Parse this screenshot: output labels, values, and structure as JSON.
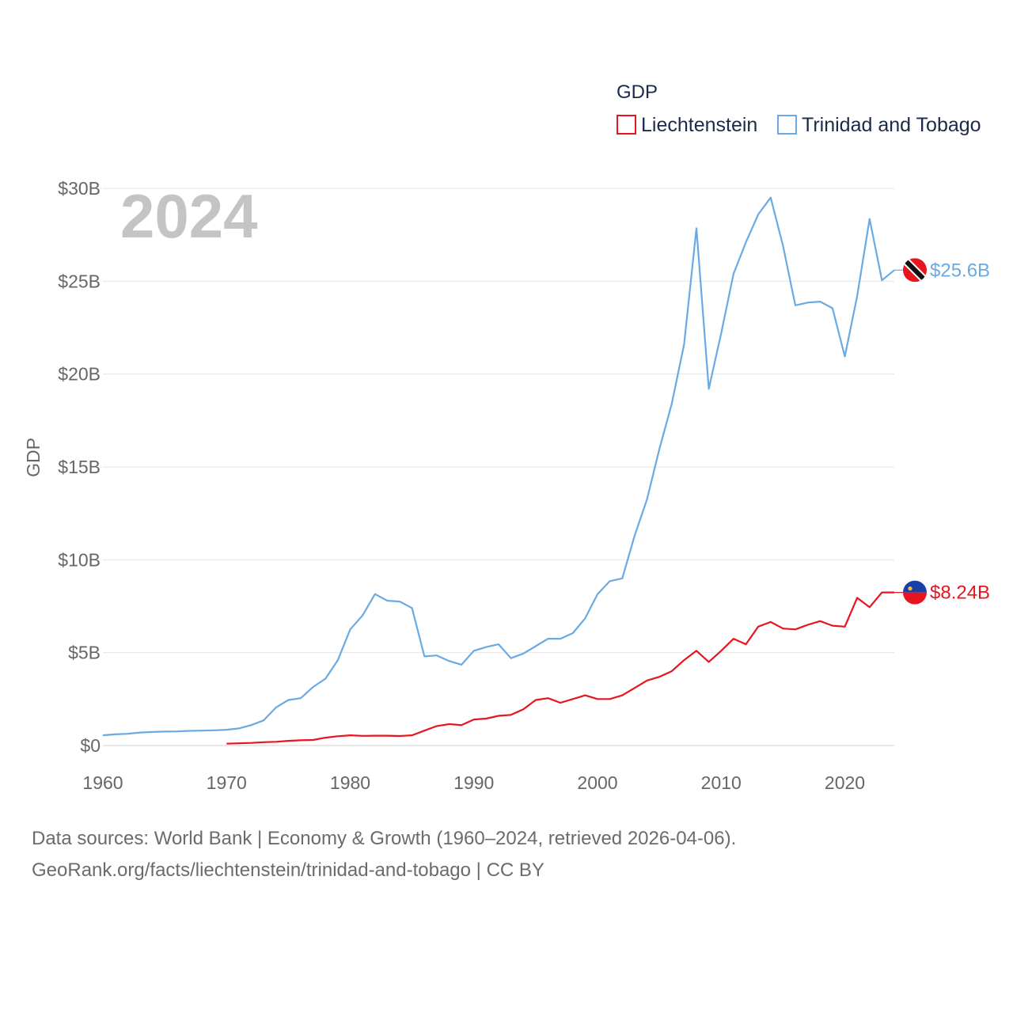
{
  "chart_data": {
    "type": "line",
    "title": "GDP",
    "watermark_year": "2024",
    "xlabel": "",
    "ylabel": "GDP",
    "xlim": [
      1960,
      2024
    ],
    "ylim": [
      0,
      30
    ],
    "x_ticks": [
      {
        "value": 1960,
        "label": "1960"
      },
      {
        "value": 1970,
        "label": "1970"
      },
      {
        "value": 1980,
        "label": "1980"
      },
      {
        "value": 1990,
        "label": "1990"
      },
      {
        "value": 2000,
        "label": "2000"
      },
      {
        "value": 2010,
        "label": "2010"
      },
      {
        "value": 2020,
        "label": "2020"
      }
    ],
    "y_ticks": [
      {
        "value": 0,
        "label": "$0"
      },
      {
        "value": 5,
        "label": "$5B"
      },
      {
        "value": 10,
        "label": "$10B"
      },
      {
        "value": 15,
        "label": "$15B"
      },
      {
        "value": 20,
        "label": "$20B"
      },
      {
        "value": 25,
        "label": "$25B"
      },
      {
        "value": 30,
        "label": "$30B"
      }
    ],
    "grid": true,
    "legend_position": "top-right",
    "series": [
      {
        "name": "Liechtenstein",
        "color": "#e8141e",
        "end_label": "$8.24B",
        "flag": "liechtenstein-flag",
        "x": [
          1970,
          1971,
          1972,
          1973,
          1974,
          1975,
          1976,
          1977,
          1978,
          1979,
          1980,
          1981,
          1982,
          1983,
          1984,
          1985,
          1986,
          1987,
          1988,
          1989,
          1990,
          1991,
          1992,
          1993,
          1994,
          1995,
          1996,
          1997,
          1998,
          1999,
          2000,
          2001,
          2002,
          2003,
          2004,
          2005,
          2006,
          2007,
          2008,
          2009,
          2010,
          2011,
          2012,
          2013,
          2014,
          2015,
          2016,
          2017,
          2018,
          2019,
          2020,
          2021,
          2022,
          2023,
          2024
        ],
        "values": [
          0.1,
          0.12,
          0.14,
          0.18,
          0.2,
          0.25,
          0.28,
          0.3,
          0.42,
          0.5,
          0.55,
          0.52,
          0.53,
          0.53,
          0.51,
          0.55,
          0.8,
          1.05,
          1.15,
          1.1,
          1.4,
          1.45,
          1.6,
          1.65,
          1.95,
          2.45,
          2.55,
          2.3,
          2.5,
          2.7,
          2.5,
          2.5,
          2.7,
          3.1,
          3.5,
          3.7,
          4.0,
          4.6,
          5.1,
          4.5,
          5.1,
          5.75,
          5.45,
          6.4,
          6.65,
          6.3,
          6.25,
          6.5,
          6.7,
          6.45,
          6.4,
          7.95,
          7.45,
          8.24,
          8.24
        ]
      },
      {
        "name": "Trinidad and Tobago",
        "color": "#6aaae4",
        "end_label": "$25.6B",
        "flag": "trinidad-and-tobago-flag",
        "x": [
          1960,
          1961,
          1962,
          1963,
          1964,
          1965,
          1966,
          1967,
          1968,
          1969,
          1970,
          1971,
          1972,
          1973,
          1974,
          1975,
          1976,
          1977,
          1978,
          1979,
          1980,
          1981,
          1982,
          1983,
          1984,
          1985,
          1986,
          1987,
          1988,
          1989,
          1990,
          1991,
          1992,
          1993,
          1994,
          1995,
          1996,
          1997,
          1998,
          1999,
          2000,
          2001,
          2002,
          2003,
          2004,
          2005,
          2006,
          2007,
          2008,
          2009,
          2010,
          2011,
          2012,
          2013,
          2014,
          2015,
          2016,
          2017,
          2018,
          2019,
          2020,
          2021,
          2022,
          2023,
          2024
        ],
        "values": [
          0.55,
          0.6,
          0.63,
          0.7,
          0.73,
          0.75,
          0.76,
          0.79,
          0.8,
          0.82,
          0.85,
          0.92,
          1.1,
          1.35,
          2.05,
          2.45,
          2.55,
          3.15,
          3.6,
          4.6,
          6.25,
          7.0,
          8.15,
          7.8,
          7.75,
          7.4,
          4.8,
          4.85,
          4.55,
          4.35,
          5.1,
          5.3,
          5.45,
          4.7,
          4.95,
          5.35,
          5.75,
          5.75,
          6.05,
          6.85,
          8.15,
          8.85,
          9.0,
          11.3,
          13.25,
          15.95,
          18.4,
          21.6,
          27.85,
          19.2,
          22.2,
          25.4,
          27.1,
          28.6,
          29.5,
          26.9,
          23.7,
          23.85,
          23.9,
          23.55,
          20.95,
          24.2,
          28.35,
          25.05,
          25.6
        ]
      }
    ]
  },
  "footer": {
    "line1": "Data sources: World Bank | Economy & Growth (1960–2024, retrieved 2026-04-06).",
    "line2": "GeoRank.org/facts/liechtenstein/trinidad-and-tobago | CC BY"
  }
}
